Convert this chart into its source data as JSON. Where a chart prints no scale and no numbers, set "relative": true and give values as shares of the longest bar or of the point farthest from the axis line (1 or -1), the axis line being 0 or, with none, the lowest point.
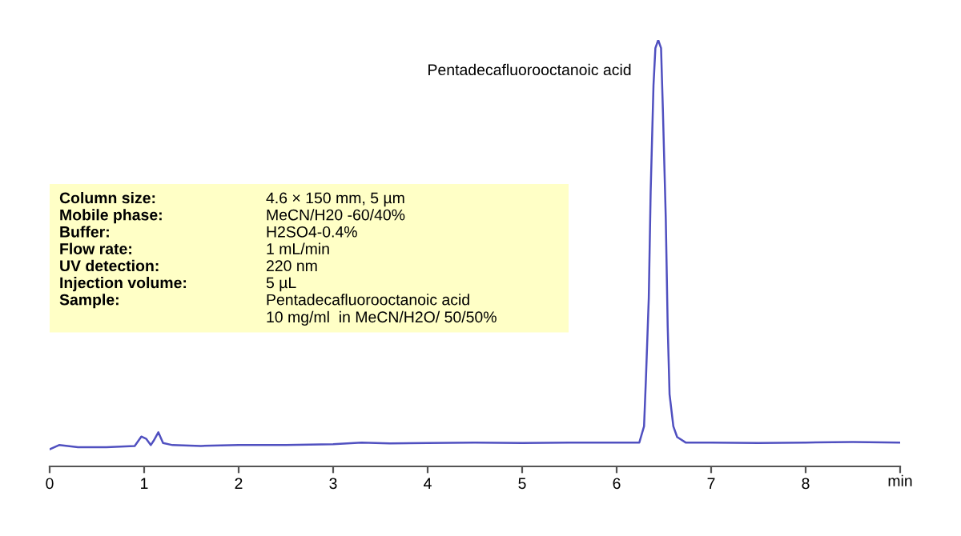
{
  "chart_data": {
    "type": "line",
    "relative": true,
    "xlabel": "min",
    "xlim": [
      0,
      9
    ],
    "xticks": [
      0,
      1,
      2,
      3,
      4,
      5,
      6,
      7,
      8,
      {
        "value": 9,
        "label": null
      }
    ],
    "grid": false,
    "marker": "none",
    "line_style": "solid",
    "tick_labels": "x",
    "series": [
      {
        "color": "#5050c0",
        "x": [
          0,
          0.1,
          0.3,
          0.6,
          0.9,
          0.97,
          1.02,
          1.07,
          1.1,
          1.15,
          1.2,
          1.3,
          1.6,
          2.0,
          2.5,
          3.0,
          3.3,
          3.6,
          4.0,
          4.5,
          5.0,
          5.5,
          6.0,
          6.2,
          6.24,
          6.29,
          6.31,
          6.34,
          6.36,
          6.39,
          6.41,
          6.44,
          6.47,
          6.49,
          6.52,
          6.54,
          6.56,
          6.6,
          6.64,
          6.73,
          7.0,
          7.5,
          8.0,
          8.5,
          9.0
        ],
        "values": [
          0.04,
          0.05,
          0.045,
          0.045,
          0.048,
          0.07,
          0.065,
          0.05,
          0.06,
          0.08,
          0.055,
          0.05,
          0.048,
          0.05,
          0.05,
          0.052,
          0.056,
          0.054,
          0.055,
          0.056,
          0.055,
          0.056,
          0.056,
          0.056,
          0.056,
          0.094,
          0.206,
          0.394,
          0.644,
          0.894,
          0.981,
          1.0,
          0.981,
          0.831,
          0.581,
          0.331,
          0.169,
          0.094,
          0.069,
          0.056,
          0.056,
          0.055,
          0.056,
          0.057,
          0.056
        ]
      }
    ],
    "annotations": [
      {
        "text": "Pentadecafluorooctanoic acid",
        "x": 6.44,
        "y": 1.0
      },
      "Column size:",
      "4.6 × 150 mm, 5 µm",
      "Mobile phase:",
      "MeCN/H20 -60/40%",
      "Buffer:",
      "H2SO4-0.4%",
      "Flow rate:",
      "1 mL/min",
      "UV detection:",
      "220 nm",
      "Injection volume:",
      "5 µL",
      "Sample:",
      "Pentadecafluorooctanoic acid\n10 mg/ml  in MeCN/H2O/ 50/50%"
    ]
  }
}
